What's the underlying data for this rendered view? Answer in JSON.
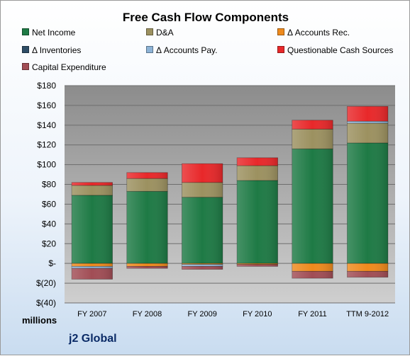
{
  "chart_data": {
    "type": "bar",
    "stacked": true,
    "title": "Free Cash Flow Components",
    "units_label": "millions",
    "footer": "j2 Global",
    "categories": [
      "FY 2007",
      "FY 2008",
      "FY 2009",
      "FY 2010",
      "FY 2011",
      "TTM 9-2012"
    ],
    "y_ticks": [
      "$180",
      "$160",
      "$140",
      "$120",
      "$100",
      "$80",
      "$60",
      "$40",
      "$20",
      "$-",
      "$(20)",
      "$(40)"
    ],
    "ylim": [
      -40,
      180
    ],
    "grid": true,
    "legend_position": "top",
    "series": [
      {
        "name": "Net Income",
        "color": "#1e7a45",
        "values": [
          69,
          73,
          67,
          84,
          116,
          122
        ]
      },
      {
        "name": "D&A",
        "color": "#9c9160",
        "values": [
          10,
          13,
          15,
          15,
          20,
          20
        ]
      },
      {
        "name": "Δ Accounts Rec.",
        "color": "#ee8a1d",
        "values": [
          -3,
          -3,
          -1,
          -1,
          -8,
          -8
        ]
      },
      {
        "name": "Δ Inventories",
        "color": "#2e4d66",
        "values": [
          0,
          0,
          0,
          0,
          0,
          0
        ]
      },
      {
        "name": "Δ Accounts Pay.",
        "color": "#8db3d6",
        "values": [
          -2,
          0,
          -2,
          0,
          0,
          2
        ]
      },
      {
        "name": "Questionable Cash Sources",
        "color": "#e8282a",
        "values": [
          3,
          6,
          19,
          8,
          9,
          15
        ]
      },
      {
        "name": "Capital Expenditure",
        "color": "#a14d55",
        "values": [
          -11,
          -2,
          -3,
          -2,
          -7,
          -6
        ]
      }
    ]
  }
}
